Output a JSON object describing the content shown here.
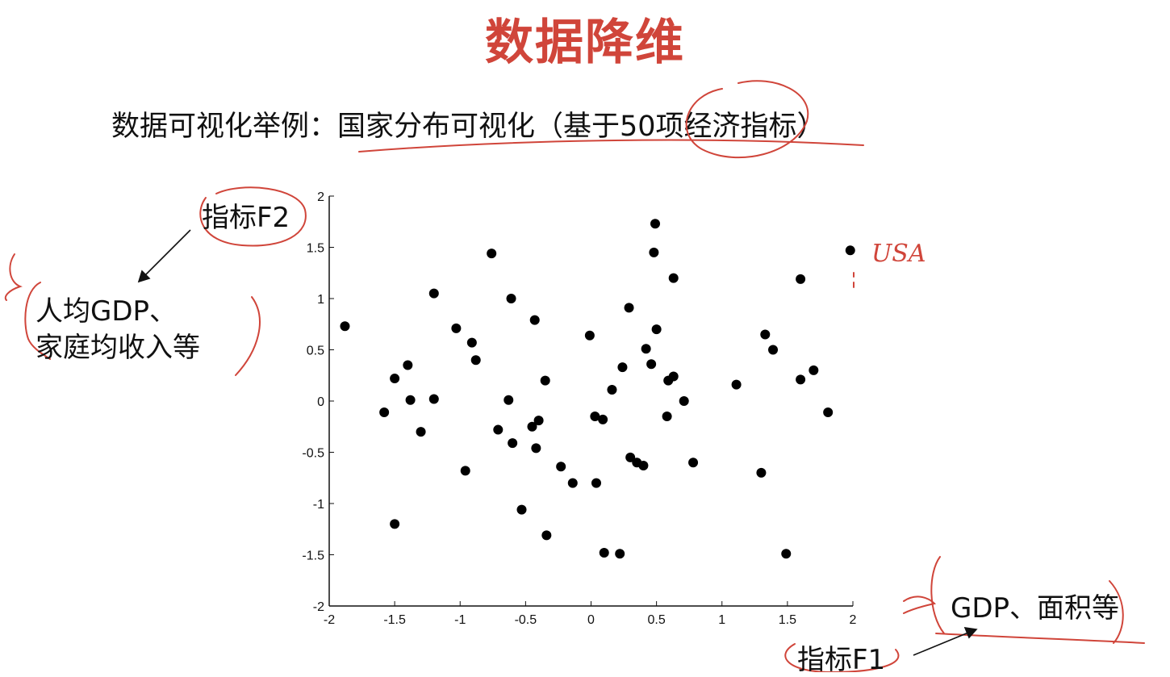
{
  "title": "数据降维",
  "subtitle": "数据可视化举例：国家分布可视化（基于50项经济指标）",
  "y_axis_annotation": {
    "label": "指标F2",
    "description_line1": "人均GDP、",
    "description_line2": "家庭均收入等"
  },
  "x_axis_annotation": {
    "label": "指标F1",
    "description": "GDP、面积等"
  },
  "point_annotation": "USA",
  "ink_color": "#d0453a",
  "chart_data": {
    "type": "scatter",
    "xlim": [
      -2,
      2
    ],
    "ylim": [
      -2,
      2
    ],
    "x_ticks": [
      "-2",
      "-1.5",
      "-1",
      "-0.5",
      "0",
      "0.5",
      "1",
      "1.5",
      "2"
    ],
    "y_ticks": [
      "2",
      "1.5",
      "1",
      "0.5",
      "0",
      "-0.5",
      "-1",
      "-1.5",
      "-2"
    ],
    "grid": false,
    "points": [
      {
        "x": -1.88,
        "y": 0.73
      },
      {
        "x": -1.58,
        "y": -0.11
      },
      {
        "x": -1.5,
        "y": 0.22
      },
      {
        "x": -1.5,
        "y": -1.2
      },
      {
        "x": -1.4,
        "y": 0.35
      },
      {
        "x": -1.38,
        "y": 0.01
      },
      {
        "x": -1.3,
        "y": -0.3
      },
      {
        "x": -1.2,
        "y": 1.05
      },
      {
        "x": -1.2,
        "y": 0.02
      },
      {
        "x": -1.03,
        "y": 0.71
      },
      {
        "x": -0.96,
        "y": -0.68
      },
      {
        "x": -0.91,
        "y": 0.57
      },
      {
        "x": -0.88,
        "y": 0.4
      },
      {
        "x": -0.76,
        "y": 1.44
      },
      {
        "x": -0.71,
        "y": -0.28
      },
      {
        "x": -0.63,
        "y": 0.01
      },
      {
        "x": -0.61,
        "y": 1.0
      },
      {
        "x": -0.6,
        "y": -0.41
      },
      {
        "x": -0.53,
        "y": -1.06
      },
      {
        "x": -0.45,
        "y": -0.25
      },
      {
        "x": -0.43,
        "y": 0.79
      },
      {
        "x": -0.42,
        "y": -0.46
      },
      {
        "x": -0.4,
        "y": -0.19
      },
      {
        "x": -0.35,
        "y": 0.2
      },
      {
        "x": -0.34,
        "y": -1.31
      },
      {
        "x": -0.23,
        "y": -0.64
      },
      {
        "x": -0.14,
        "y": -0.8
      },
      {
        "x": -0.01,
        "y": 0.64
      },
      {
        "x": 0.03,
        "y": -0.15
      },
      {
        "x": 0.04,
        "y": -0.8
      },
      {
        "x": 0.09,
        "y": -0.18
      },
      {
        "x": 0.1,
        "y": -1.48
      },
      {
        "x": 0.16,
        "y": 0.11
      },
      {
        "x": 0.22,
        "y": -1.49
      },
      {
        "x": 0.24,
        "y": 0.33
      },
      {
        "x": 0.29,
        "y": 0.91
      },
      {
        "x": 0.3,
        "y": -0.55
      },
      {
        "x": 0.35,
        "y": -0.6
      },
      {
        "x": 0.4,
        "y": -0.63
      },
      {
        "x": 0.42,
        "y": 0.51
      },
      {
        "x": 0.46,
        "y": 0.36
      },
      {
        "x": 0.48,
        "y": 1.45
      },
      {
        "x": 0.49,
        "y": 1.73
      },
      {
        "x": 0.5,
        "y": 0.7
      },
      {
        "x": 0.58,
        "y": -0.15
      },
      {
        "x": 0.59,
        "y": 0.2
      },
      {
        "x": 0.63,
        "y": 0.24
      },
      {
        "x": 0.63,
        "y": 1.2
      },
      {
        "x": 0.71,
        "y": 0.0
      },
      {
        "x": 0.78,
        "y": -0.6
      },
      {
        "x": 1.11,
        "y": 0.16
      },
      {
        "x": 1.3,
        "y": -0.7
      },
      {
        "x": 1.33,
        "y": 0.65
      },
      {
        "x": 1.39,
        "y": 0.5
      },
      {
        "x": 1.49,
        "y": -1.49
      },
      {
        "x": 1.6,
        "y": 1.19
      },
      {
        "x": 1.6,
        "y": 0.21
      },
      {
        "x": 1.7,
        "y": 0.3
      },
      {
        "x": 1.81,
        "y": -0.11
      },
      {
        "x": 1.98,
        "y": 1.47
      }
    ]
  }
}
